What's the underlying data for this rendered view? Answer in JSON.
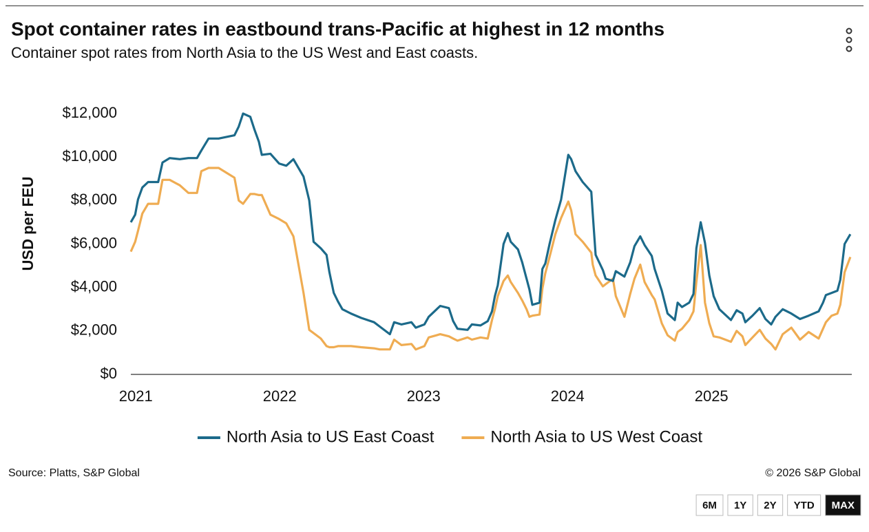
{
  "chart_data": {
    "type": "line",
    "title": "Spot container rates in eastbound trans-Pacific at highest in 12 months",
    "subtitle": "Container spot rates from North Asia to the US West and East coasts.",
    "y_label": "USD per FEU",
    "x": [
      2020.97,
      2021.0,
      2021.02,
      2021.05,
      2021.09,
      2021.16,
      2021.19,
      2021.24,
      2021.31,
      2021.37,
      2021.43,
      2021.46,
      2021.51,
      2021.58,
      2021.69,
      2021.72,
      2021.75,
      2021.8,
      2021.83,
      2021.86,
      2021.88,
      2021.94,
      2022.0,
      2022.05,
      2022.1,
      2022.17,
      2022.21,
      2022.24,
      2022.29,
      2022.33,
      2022.35,
      2022.38,
      2022.41,
      2022.44,
      2022.5,
      2022.57,
      2022.66,
      2022.7,
      2022.77,
      2022.8,
      2022.85,
      2022.92,
      2022.95,
      2023.01,
      2023.04,
      2023.12,
      2023.18,
      2023.21,
      2023.24,
      2023.31,
      2023.34,
      2023.4,
      2023.45,
      2023.48,
      2023.5,
      2023.52,
      2023.56,
      2023.59,
      2023.61,
      2023.66,
      2023.69,
      2023.72,
      2023.74,
      2023.76,
      2023.81,
      2023.83,
      2023.85,
      2023.88,
      2023.92,
      2023.96,
      2024.01,
      2024.03,
      2024.06,
      2024.11,
      2024.17,
      2024.18,
      2024.2,
      2024.25,
      2024.27,
      2024.32,
      2024.34,
      2024.4,
      2024.44,
      2024.47,
      2024.51,
      2024.54,
      2024.59,
      2024.61,
      2024.66,
      2024.7,
      2024.75,
      2024.77,
      2024.8,
      2024.85,
      2024.88,
      2024.9,
      2024.93,
      2024.96,
      2024.99,
      2025.02,
      2025.06,
      2025.14,
      2025.18,
      2025.22,
      2025.24,
      2025.29,
      2025.34,
      2025.38,
      2025.42,
      2025.45,
      2025.5,
      2025.56,
      2025.62,
      2025.68,
      2025.75,
      2025.78,
      2025.8,
      2025.84,
      2025.88,
      2025.9,
      2025.93,
      2025.97
    ],
    "series": [
      {
        "name": "North Asia to US East Coast",
        "color": "#1c6a8a",
        "values": [
          7000,
          7350,
          8050,
          8600,
          8850,
          8850,
          9750,
          9950,
          9900,
          9950,
          9950,
          10300,
          10850,
          10850,
          11000,
          11400,
          12000,
          11850,
          11250,
          10700,
          10100,
          10150,
          9700,
          9600,
          9900,
          9100,
          8000,
          6100,
          5800,
          5500,
          4700,
          3750,
          3350,
          3000,
          2800,
          2600,
          2400,
          2200,
          1850,
          2400,
          2300,
          2400,
          2150,
          2300,
          2650,
          3150,
          3050,
          2450,
          2100,
          2050,
          2300,
          2250,
          2450,
          2900,
          3600,
          4100,
          6000,
          6500,
          6100,
          5750,
          5150,
          4400,
          3900,
          3200,
          3300,
          4850,
          5100,
          6000,
          7100,
          8050,
          10100,
          9900,
          9350,
          8850,
          8400,
          7400,
          5500,
          4800,
          4400,
          4300,
          4750,
          4500,
          5150,
          5900,
          6350,
          5950,
          5450,
          4850,
          3850,
          2800,
          2500,
          3300,
          3100,
          3300,
          3700,
          5800,
          7000,
          6050,
          4550,
          3600,
          3000,
          2500,
          2950,
          2800,
          2400,
          2700,
          3050,
          2550,
          2300,
          2650,
          3000,
          2800,
          2550,
          2700,
          2900,
          3300,
          3650,
          3750,
          3850,
          4350,
          6000,
          6450
        ]
      },
      {
        "name": "North Asia to US West Coast",
        "color": "#efac52",
        "values": [
          5650,
          6100,
          6600,
          7400,
          7850,
          7850,
          8950,
          8950,
          8700,
          8350,
          8350,
          9350,
          9500,
          9500,
          9050,
          8000,
          7850,
          8300,
          8300,
          8250,
          8250,
          7350,
          7150,
          6950,
          6350,
          3750,
          2050,
          1900,
          1650,
          1300,
          1250,
          1250,
          1300,
          1300,
          1300,
          1250,
          1200,
          1150,
          1150,
          1600,
          1350,
          1400,
          1150,
          1300,
          1700,
          1850,
          1750,
          1650,
          1550,
          1700,
          1600,
          1700,
          1650,
          2500,
          3000,
          3600,
          4300,
          4550,
          4250,
          3750,
          3400,
          3000,
          2650,
          2700,
          2750,
          3950,
          4650,
          5400,
          6450,
          7200,
          7950,
          7550,
          6450,
          6100,
          5600,
          5050,
          4550,
          4050,
          4150,
          4400,
          3600,
          2650,
          3700,
          4400,
          5050,
          4250,
          3650,
          3450,
          2350,
          1800,
          1550,
          1950,
          2100,
          2500,
          2900,
          4250,
          5950,
          3300,
          2350,
          1750,
          1700,
          1500,
          2000,
          1750,
          1350,
          1700,
          2050,
          1650,
          1400,
          1150,
          1850,
          2150,
          1600,
          1950,
          1650,
          2100,
          2400,
          2700,
          2800,
          3200,
          4700,
          5400
        ]
      }
    ],
    "xlim": [
      2020.97,
      2025.98
    ],
    "xticks": [
      2021,
      2022,
      2023,
      2024,
      2025
    ],
    "ylim": [
      0,
      12000
    ],
    "yticks": [
      {
        "value": 0,
        "label": "$0"
      },
      {
        "value": 2000,
        "label": "$2,000"
      },
      {
        "value": 4000,
        "label": "$4,000"
      },
      {
        "value": 6000,
        "label": "$6,000"
      },
      {
        "value": 8000,
        "label": "$8,000"
      },
      {
        "value": 10000,
        "label": "$10,000"
      },
      {
        "value": 12000,
        "label": "$12,000"
      }
    ],
    "grid": false,
    "legend": "bottom"
  },
  "footer": {
    "source": "Source: Platts, S&P Global",
    "copyright": "© 2026 S&P Global"
  },
  "range_buttons": [
    "6M",
    "1Y",
    "2Y",
    "YTD",
    "MAX"
  ]
}
